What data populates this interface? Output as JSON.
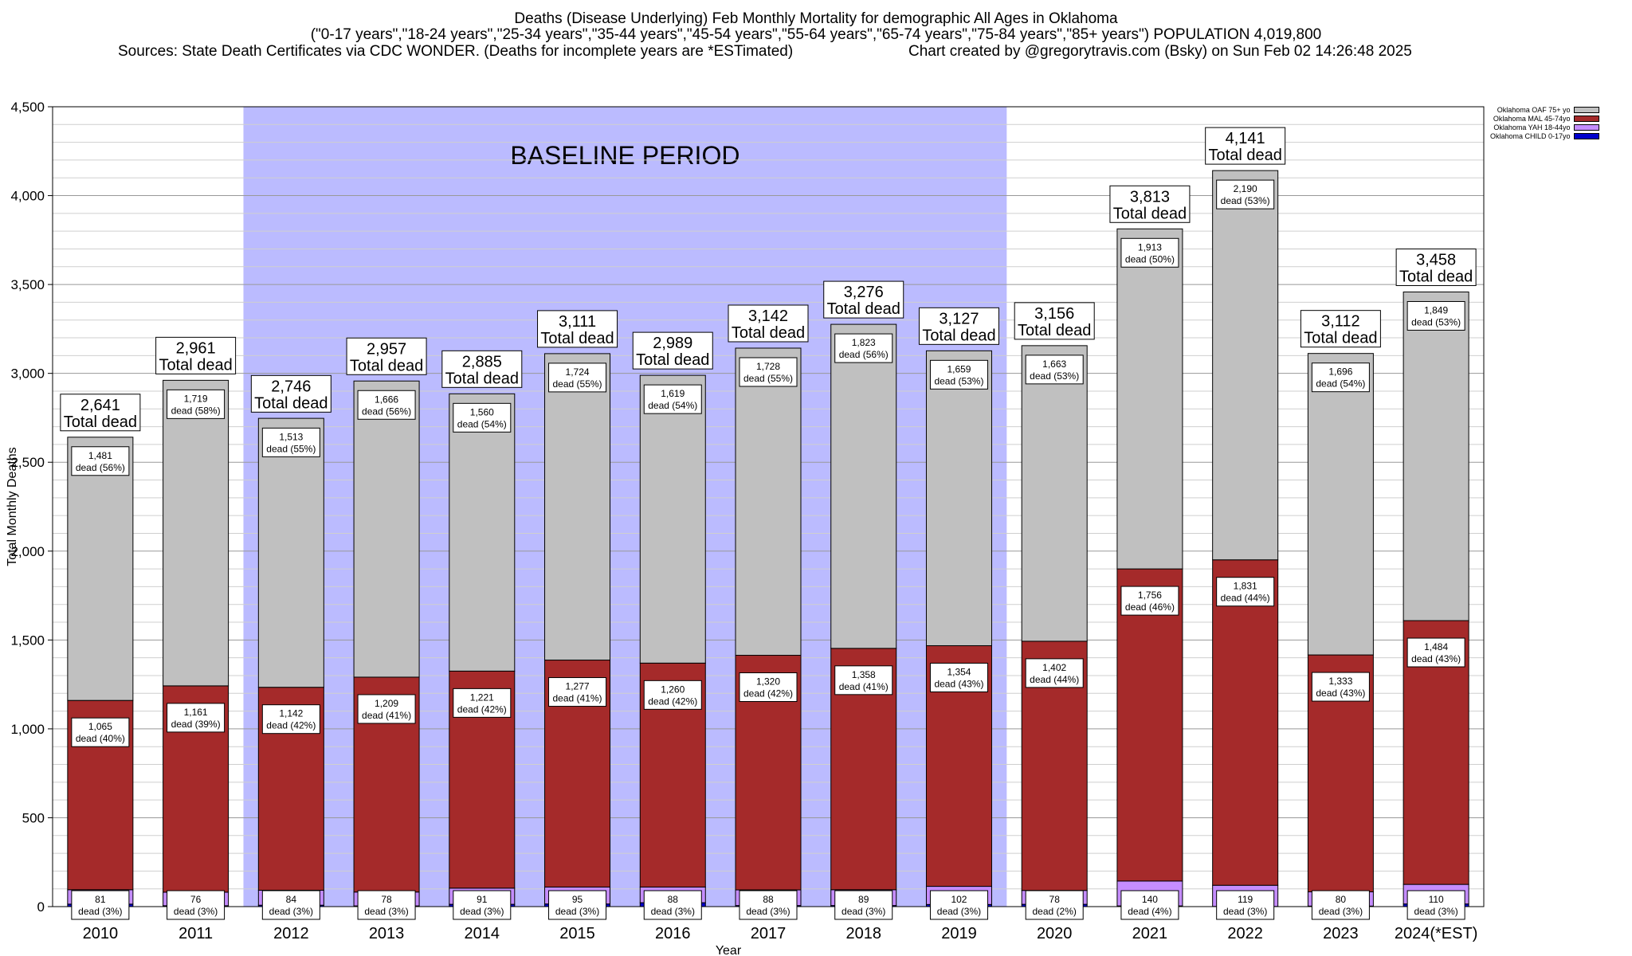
{
  "title": {
    "line1": "Deaths (Disease Underlying) Feb Monthly Mortality for demographic All Ages in Oklahoma",
    "line2": "(\"0-17 years\",\"18-24 years\",\"25-34 years\",\"35-44 years\",\"45-54 years\",\"55-64 years\",\"65-74 years\",\"75-84 years\",\"85+ years\") POPULATION 4,019,800",
    "sources": "Sources: State Death Certificates via CDC WONDER. (Deaths for incomplete years are *ESTimated)",
    "credit": "Chart created by @gregorytravis.com (Bsky) on Sun Feb 02 14:26:48 2025"
  },
  "legend": [
    {
      "label": "Oklahoma OAF 75+ yo",
      "color": "#c0c0c0"
    },
    {
      "label": "Oklahoma MAL 45-74yo",
      "color": "#a52a2a"
    },
    {
      "label": "Oklahoma YAH 18-44yo",
      "color": "#c58dff"
    },
    {
      "label": "Oklahoma CHILD 0-17yo",
      "color": "#0000cc"
    }
  ],
  "chart_data": {
    "type": "bar",
    "stacked": true,
    "title": "Deaths (Disease Underlying) Feb Monthly Mortality for demographic All Ages in Oklahoma",
    "xlabel": "Year",
    "ylabel": "Total Monthly Deaths",
    "ylim": [
      0,
      4500
    ],
    "yticks": [
      0,
      500,
      1000,
      1500,
      2000,
      2500,
      3000,
      3500,
      4000,
      4500
    ],
    "ytick_labels": [
      "0",
      "500",
      "1,000",
      "1,500",
      "2,000",
      "2,500",
      "3,000",
      "3,500",
      "4,000",
      "4,500"
    ],
    "grid": true,
    "legend_position": "top-right",
    "categories": [
      "2010",
      "2011",
      "2012",
      "2013",
      "2014",
      "2015",
      "2016",
      "2017",
      "2018",
      "2019",
      "2020",
      "2021",
      "2022",
      "2023",
      "2024(*EST)"
    ],
    "totals": [
      2641,
      2961,
      2746,
      2957,
      2885,
      3111,
      2989,
      3142,
      3276,
      3127,
      3156,
      3813,
      4141,
      3112,
      3458
    ],
    "total_labels": [
      "2,641",
      "2,961",
      "2,746",
      "2,957",
      "2,885",
      "3,111",
      "2,989",
      "3,142",
      "3,276",
      "3,127",
      "3,156",
      "3,813",
      "4,141",
      "3,112",
      "3,458"
    ],
    "total_suffix": "Total dead",
    "dead_word": "dead",
    "series": [
      {
        "name": "Oklahoma CHILD 0-17yo",
        "color": "#0000cc",
        "values": [
          14,
          5,
          8,
          4,
          13,
          15,
          22,
          6,
          6,
          12,
          13,
          4,
          1,
          3,
          15
        ]
      },
      {
        "name": "Oklahoma YAH 18-44yo",
        "color": "#c58dff",
        "values": [
          81,
          76,
          84,
          78,
          91,
          95,
          88,
          88,
          89,
          102,
          78,
          140,
          119,
          80,
          110
        ],
        "labels": [
          "81",
          "76",
          "84",
          "78",
          "91",
          "95",
          "88",
          "88",
          "89",
          "102",
          "78",
          "140",
          "119",
          "80",
          "110"
        ],
        "percents": [
          "(3%)",
          "(3%)",
          "(3%)",
          "(3%)",
          "(3%)",
          "(3%)",
          "(3%)",
          "(3%)",
          "(3%)",
          "(3%)",
          "(2%)",
          "(4%)",
          "(3%)",
          "(3%)",
          "(3%)"
        ]
      },
      {
        "name": "Oklahoma MAL 45-74yo",
        "color": "#a52a2a",
        "values": [
          1065,
          1161,
          1142,
          1209,
          1221,
          1277,
          1260,
          1320,
          1358,
          1354,
          1402,
          1756,
          1831,
          1333,
          1484
        ],
        "labels": [
          "1,065",
          "1,161",
          "1,142",
          "1,209",
          "1,221",
          "1,277",
          "1,260",
          "1,320",
          "1,358",
          "1,354",
          "1,402",
          "1,756",
          "1,831",
          "1,333",
          "1,484"
        ],
        "percents": [
          "(40%)",
          "(39%)",
          "(42%)",
          "(41%)",
          "(42%)",
          "(41%)",
          "(42%)",
          "(42%)",
          "(41%)",
          "(43%)",
          "(44%)",
          "(46%)",
          "(44%)",
          "(43%)",
          "(43%)"
        ]
      },
      {
        "name": "Oklahoma OAF 75+ yo",
        "color": "#c0c0c0",
        "values": [
          1481,
          1719,
          1513,
          1666,
          1560,
          1724,
          1619,
          1728,
          1823,
          1659,
          1663,
          1913,
          2190,
          1696,
          1849
        ],
        "labels": [
          "1,481",
          "1,719",
          "1,513",
          "1,666",
          "1,560",
          "1,724",
          "1,619",
          "1,728",
          "1,823",
          "1,659",
          "1,663",
          "1,913",
          "2,190",
          "1,696",
          "1,849"
        ],
        "percents": [
          "(56%)",
          "(58%)",
          "(55%)",
          "(56%)",
          "(54%)",
          "(55%)",
          "(54%)",
          "(55%)",
          "(56%)",
          "(53%)",
          "(53%)",
          "(50%)",
          "(53%)",
          "(54%)",
          "(53%)"
        ]
      }
    ],
    "annotations": [
      {
        "text": "BASELINE PERIOD",
        "from": "2012",
        "to": "2019",
        "color": "#bbbbff"
      }
    ]
  }
}
